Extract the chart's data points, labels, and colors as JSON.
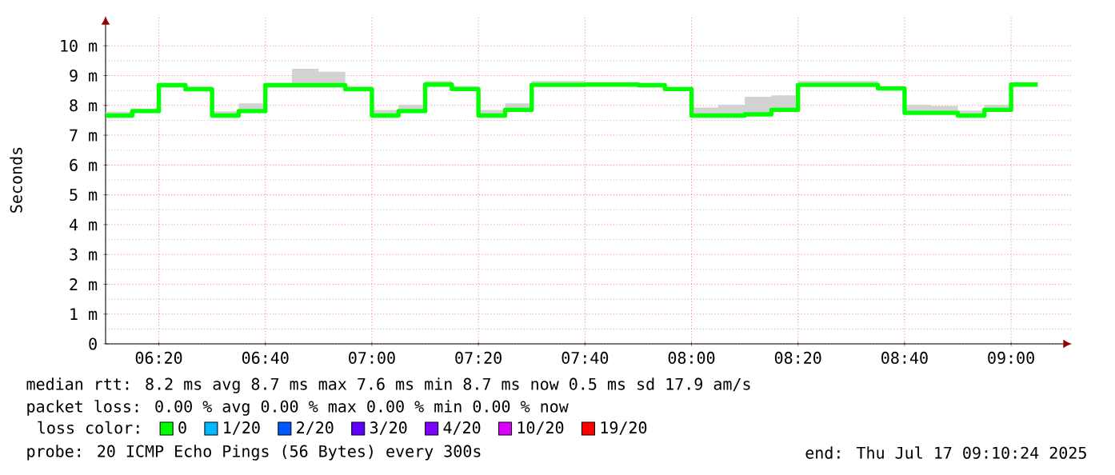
{
  "chart_data": {
    "type": "step",
    "ylabel": "Seconds",
    "x": [
      6.1667,
      6.25,
      6.3333,
      6.4167,
      6.5,
      6.5833,
      6.6667,
      6.75,
      6.8333,
      6.9167,
      7,
      7.0833,
      7.1667,
      7.25,
      7.3333,
      7.4167,
      7.5,
      7.5833,
      7.6667,
      7.75,
      7.8333,
      7.9167,
      8,
      8.0833,
      8.1667,
      8.25,
      8.3333,
      8.4167,
      8.5,
      8.5833,
      8.6667,
      8.75,
      8.8333,
      8.9167,
      9,
      9.0833
    ],
    "series": [
      {
        "name": "0",
        "color": "#00ff00",
        "values": [
          7.66,
          7.81,
          8.68,
          8.54,
          7.66,
          7.81,
          8.68,
          8.68,
          8.68,
          8.54,
          7.66,
          7.81,
          8.7,
          8.55,
          7.66,
          7.85,
          8.69,
          8.69,
          8.7,
          8.7,
          8.68,
          8.55,
          7.66,
          7.66,
          7.7,
          7.85,
          8.69,
          8.69,
          8.69,
          8.57,
          7.75,
          7.75,
          7.66,
          7.85,
          8.7,
          8.7
        ],
        "lower": [
          7.66,
          7.81,
          8.68,
          8.54,
          7.66,
          7.81,
          8.68,
          8.68,
          8.68,
          8.54,
          7.66,
          7.81,
          8.7,
          8.55,
          7.66,
          7.85,
          8.69,
          8.69,
          8.7,
          8.7,
          8.68,
          8.55,
          7.66,
          7.66,
          7.7,
          7.85,
          8.69,
          8.69,
          8.69,
          8.57,
          7.75,
          7.75,
          7.66,
          7.85,
          8.7,
          8.7
        ],
        "upper": [
          7.79,
          7.88,
          8.75,
          8.65,
          7.8,
          8.07,
          8.75,
          9.23,
          9.13,
          8.65,
          7.85,
          8.02,
          8.82,
          8.65,
          7.85,
          8.07,
          8.82,
          8.82,
          8.75,
          8.75,
          8.72,
          8.6,
          7.93,
          8.02,
          8.29,
          8.34,
          8.82,
          8.82,
          8.82,
          8.65,
          8.02,
          7.98,
          7.83,
          8.02,
          8.75,
          8.75
        ]
      },
      {
        "name": "1/20",
        "color": "#00b8ff",
        "values": [
          null,
          null,
          null,
          null,
          null,
          null,
          null,
          null,
          null,
          null,
          null,
          null,
          null,
          null,
          null,
          null,
          null,
          null,
          null,
          null,
          null,
          null,
          null,
          null,
          null,
          null,
          null,
          null,
          null,
          null,
          null,
          null,
          null,
          null,
          null,
          null
        ]
      },
      {
        "name": "2/20",
        "color": "#0059ff",
        "values": [
          null,
          null,
          null,
          null,
          null,
          null,
          null,
          null,
          null,
          null,
          null,
          null,
          null,
          null,
          null,
          null,
          null,
          null,
          null,
          null,
          null,
          null,
          null,
          null,
          null,
          null,
          null,
          null,
          null,
          null,
          null,
          null,
          null,
          null,
          null,
          null
        ]
      },
      {
        "name": "3/20",
        "color": "#5e00ff",
        "values": [
          null,
          null,
          null,
          null,
          null,
          null,
          null,
          null,
          null,
          null,
          null,
          null,
          null,
          null,
          null,
          null,
          null,
          null,
          null,
          null,
          null,
          null,
          null,
          null,
          null,
          null,
          null,
          null,
          null,
          null,
          null,
          null,
          null,
          null,
          null,
          null
        ]
      },
      {
        "name": "4/20",
        "color": "#7e00ff",
        "values": [
          null,
          null,
          null,
          null,
          null,
          null,
          null,
          null,
          null,
          null,
          null,
          null,
          null,
          null,
          null,
          null,
          null,
          null,
          null,
          null,
          null,
          null,
          null,
          null,
          null,
          null,
          null,
          null,
          null,
          null,
          null,
          null,
          null,
          null,
          null,
          null
        ]
      },
      {
        "name": "10/20",
        "color": "#dd00ff",
        "values": [
          null,
          null,
          null,
          null,
          null,
          null,
          null,
          null,
          null,
          null,
          null,
          null,
          null,
          null,
          null,
          null,
          null,
          null,
          null,
          null,
          null,
          null,
          null,
          null,
          null,
          null,
          null,
          null,
          null,
          null,
          null,
          null,
          null,
          null,
          null,
          null
        ]
      },
      {
        "name": "19/20",
        "color": "#ff0000",
        "values": [
          null,
          null,
          null,
          null,
          null,
          null,
          null,
          null,
          null,
          null,
          null,
          null,
          null,
          null,
          null,
          null,
          null,
          null,
          null,
          null,
          null,
          null,
          null,
          null,
          null,
          null,
          null,
          null,
          null,
          null,
          null,
          null,
          null,
          null,
          null,
          null
        ]
      }
    ],
    "legend": "bottom",
    "legend_title": "loss color:",
    "xlim": [
      6.1667,
      9.19
    ],
    "xticks": [
      {
        "value": 6.3333,
        "label": "06:20"
      },
      {
        "value": 6.6667,
        "label": "06:40"
      },
      {
        "value": 7,
        "label": "07:00"
      },
      {
        "value": 7.3333,
        "label": "07:20"
      },
      {
        "value": 7.6667,
        "label": "07:40"
      },
      {
        "value": 8,
        "label": "08:00"
      },
      {
        "value": 8.3333,
        "label": "08:20"
      },
      {
        "value": 8.6667,
        "label": "08:40"
      },
      {
        "value": 9,
        "label": "09:00"
      }
    ],
    "ylim": [
      0,
      11
    ],
    "yticks": [
      0,
      {
        "value": 1,
        "label": "1 m"
      },
      {
        "value": 2,
        "label": "2 m"
      },
      {
        "value": 3,
        "label": "3 m"
      },
      {
        "value": 4,
        "label": "4 m"
      },
      {
        "value": 5,
        "label": "5 m"
      },
      {
        "value": 6,
        "label": "6 m"
      },
      {
        "value": 7,
        "label": "7 m"
      },
      {
        "value": 8,
        "label": "8 m"
      },
      {
        "value": 9,
        "label": "9 m"
      },
      {
        "value": 10,
        "label": "10 m"
      }
    ],
    "grid": true,
    "line_style": "solid",
    "annotations": [
      "median rtt: 8.2 ms avg 8.7 ms max 7.6 ms min 8.7 ms now 0.5 ms sd 17.9 am/s",
      "packet loss: 0.00 % avg 0.00 % max 0.00 % min 0.00 % now",
      "probe: 20 ICMP Echo Pings (56 Bytes) every 300s",
      "end: Thu Jul 17 09:10:24 2025"
    ]
  }
}
